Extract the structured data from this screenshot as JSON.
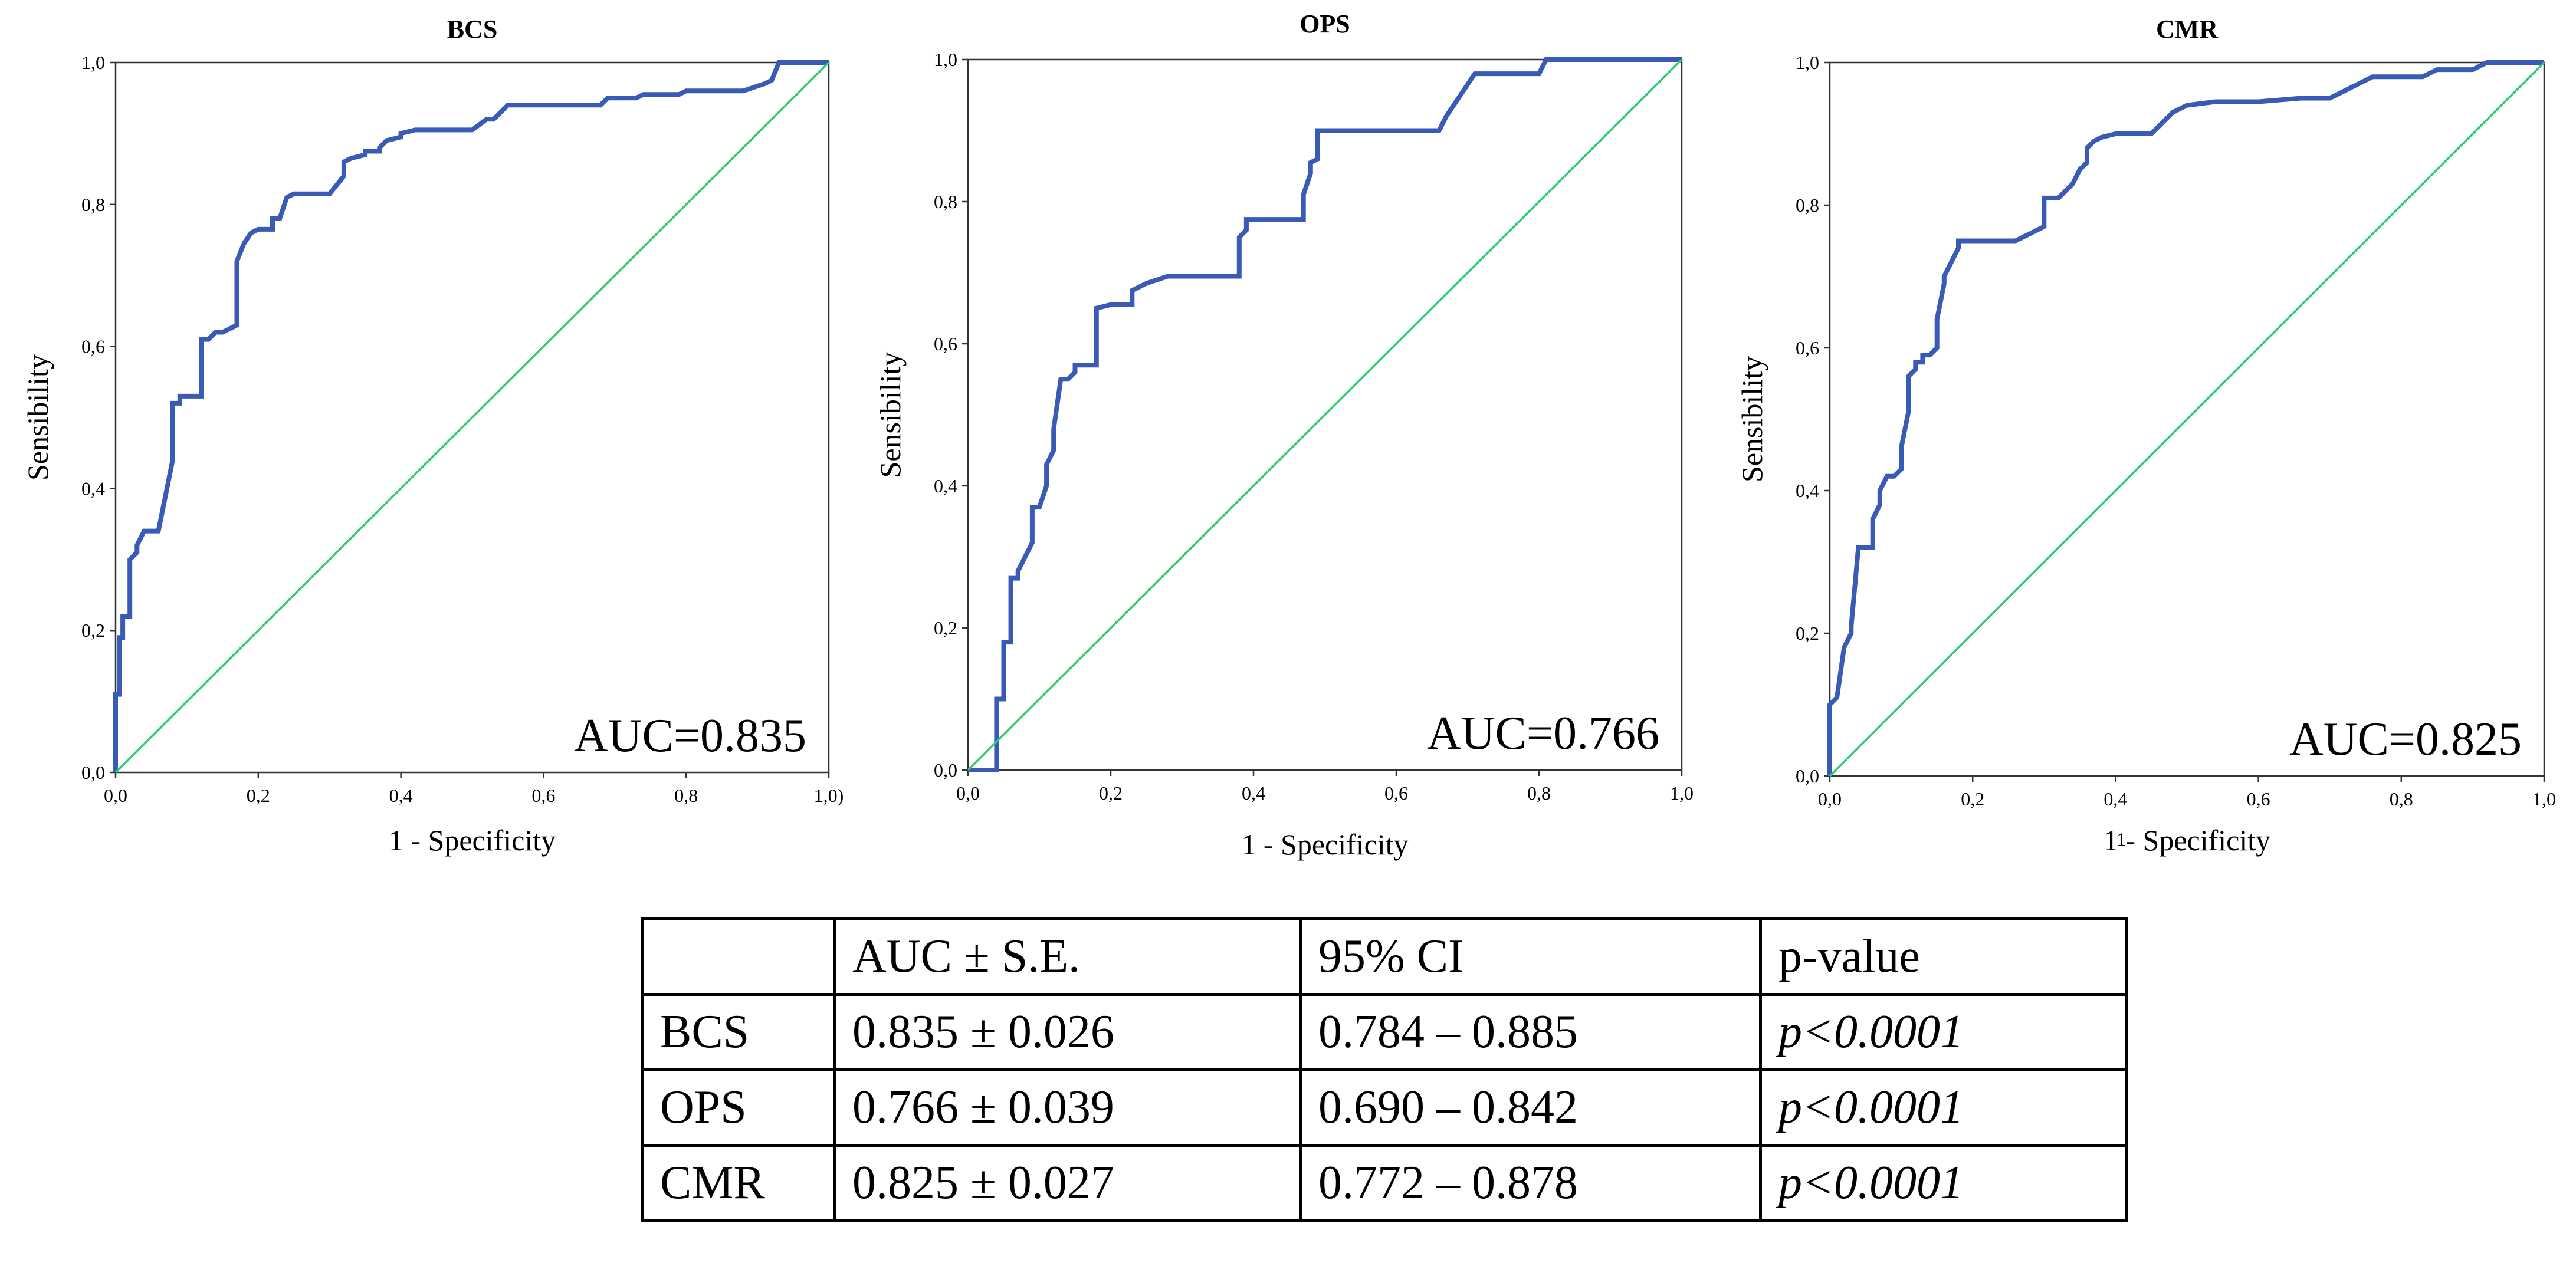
{
  "chart_data": [
    {
      "type": "line",
      "title": "BCS",
      "xlabel": "1 - Specificity",
      "ylabel": "Sensibility",
      "xlim": [
        0,
        1
      ],
      "ylim": [
        0,
        1
      ],
      "x_tick_labels": [
        "0,0",
        "0,2",
        "0,4",
        "0,6",
        "0,8",
        "1,0)"
      ],
      "y_tick_labels": [
        "0,0",
        "0,2",
        "0,4",
        "0,6",
        "0,8",
        "1,0"
      ],
      "annotation": "AUC=0.835",
      "series": [
        {
          "name": "ROC",
          "color": "#3a5bb5",
          "x": [
            0,
            0,
            0.005,
            0.005,
            0.01,
            0.01,
            0.02,
            0.02,
            0.03,
            0.03,
            0.04,
            0.05,
            0.06,
            0.08,
            0.08,
            0.09,
            0.09,
            0.1,
            0.11,
            0.12,
            0.12,
            0.13,
            0.14,
            0.15,
            0.16,
            0.17,
            0.17,
            0.18,
            0.19,
            0.2,
            0.22,
            0.22,
            0.23,
            0.24,
            0.25,
            0.26,
            0.28,
            0.3,
            0.32,
            0.32,
            0.33,
            0.35,
            0.35,
            0.37,
            0.37,
            0.38,
            0.4,
            0.4,
            0.42,
            0.46,
            0.5,
            0.52,
            0.53,
            0.55,
            0.68,
            0.69,
            0.73,
            0.74,
            0.79,
            0.8,
            0.86,
            0.88,
            0.91,
            0.92,
            0.93,
            1.0
          ],
          "y": [
            0,
            0.11,
            0.11,
            0.19,
            0.19,
            0.22,
            0.22,
            0.3,
            0.31,
            0.32,
            0.34,
            0.34,
            0.34,
            0.44,
            0.52,
            0.52,
            0.53,
            0.53,
            0.53,
            0.53,
            0.61,
            0.61,
            0.62,
            0.62,
            0.625,
            0.63,
            0.72,
            0.745,
            0.76,
            0.765,
            0.765,
            0.78,
            0.78,
            0.81,
            0.815,
            0.815,
            0.815,
            0.815,
            0.84,
            0.86,
            0.865,
            0.87,
            0.875,
            0.875,
            0.88,
            0.89,
            0.895,
            0.9,
            0.905,
            0.905,
            0.905,
            0.92,
            0.92,
            0.94,
            0.94,
            0.95,
            0.95,
            0.955,
            0.955,
            0.96,
            0.96,
            0.96,
            0.97,
            0.975,
            1.0,
            1.0
          ]
        },
        {
          "name": "Reference",
          "color": "#2ecc71",
          "x": [
            0,
            1
          ],
          "y": [
            0,
            1
          ]
        }
      ]
    },
    {
      "type": "line",
      "title": "OPS",
      "xlabel": "1 - Specificity",
      "ylabel": "Sensibility",
      "xlim": [
        0,
        1
      ],
      "ylim": [
        0,
        1
      ],
      "x_tick_labels": [
        "0,0",
        "0,2",
        "0,4",
        "0,6",
        "0,8",
        "1,0"
      ],
      "y_tick_labels": [
        "0,0",
        "0,2",
        "0,4",
        "0,6",
        "0,8",
        "1,0"
      ],
      "annotation": "AUC=0.766",
      "series": [
        {
          "name": "ROC",
          "color": "#3a5bb5",
          "x": [
            0,
            0.04,
            0.04,
            0.05,
            0.05,
            0.06,
            0.06,
            0.07,
            0.07,
            0.08,
            0.09,
            0.09,
            0.1,
            0.11,
            0.11,
            0.12,
            0.12,
            0.13,
            0.13,
            0.14,
            0.15,
            0.15,
            0.16,
            0.18,
            0.18,
            0.2,
            0.23,
            0.23,
            0.25,
            0.28,
            0.3,
            0.38,
            0.38,
            0.39,
            0.39,
            0.43,
            0.47,
            0.47,
            0.48,
            0.48,
            0.49,
            0.49,
            0.53,
            0.6,
            0.66,
            0.67,
            0.69,
            0.71,
            0.74,
            0.8,
            0.81,
            1.0
          ],
          "y": [
            0,
            0,
            0.1,
            0.1,
            0.18,
            0.18,
            0.27,
            0.27,
            0.28,
            0.3,
            0.32,
            0.37,
            0.37,
            0.4,
            0.43,
            0.45,
            0.48,
            0.55,
            0.55,
            0.55,
            0.56,
            0.57,
            0.57,
            0.57,
            0.65,
            0.655,
            0.655,
            0.675,
            0.685,
            0.695,
            0.695,
            0.695,
            0.75,
            0.76,
            0.775,
            0.775,
            0.775,
            0.81,
            0.84,
            0.855,
            0.86,
            0.9,
            0.9,
            0.9,
            0.9,
            0.92,
            0.95,
            0.98,
            0.98,
            0.98,
            1.0,
            1.0
          ]
        },
        {
          "name": "Reference",
          "color": "#2ecc71",
          "x": [
            0,
            1
          ],
          "y": [
            0,
            1
          ]
        }
      ]
    },
    {
      "type": "line",
      "title": "CMR",
      "xlabel": "1 - Specificity",
      "ylabel": "Sensibility",
      "xlim": [
        0,
        1
      ],
      "ylim": [
        0,
        1
      ],
      "x_tick_labels": [
        "0,0",
        "0,2",
        "0,4",
        "0,6",
        "0,8",
        "1,0"
      ],
      "y_tick_labels": [
        "0,0",
        "0,2",
        "0,4",
        "0,6",
        "0,8",
        "1,0"
      ],
      "annotation": "AUC=0.825",
      "extra_label": "1",
      "series": [
        {
          "name": "ROC",
          "color": "#3a5bb5",
          "x": [
            0,
            0,
            0.01,
            0.01,
            0.02,
            0.02,
            0.03,
            0.03,
            0.04,
            0.04,
            0.06,
            0.06,
            0.07,
            0.07,
            0.08,
            0.09,
            0.1,
            0.1,
            0.11,
            0.11,
            0.12,
            0.12,
            0.13,
            0.13,
            0.14,
            0.15,
            0.15,
            0.16,
            0.16,
            0.17,
            0.18,
            0.18,
            0.19,
            0.2,
            0.22,
            0.26,
            0.28,
            0.3,
            0.3,
            0.32,
            0.33,
            0.34,
            0.35,
            0.36,
            0.36,
            0.37,
            0.38,
            0.4,
            0.42,
            0.45,
            0.46,
            0.47,
            0.48,
            0.5,
            0.54,
            0.6,
            0.66,
            0.7,
            0.74,
            0.76,
            0.83,
            0.85,
            0.9,
            0.92,
            1.0
          ],
          "y": [
            0,
            0.1,
            0.11,
            0.11,
            0.18,
            0.18,
            0.2,
            0.21,
            0.32,
            0.32,
            0.32,
            0.36,
            0.38,
            0.4,
            0.42,
            0.42,
            0.43,
            0.46,
            0.51,
            0.56,
            0.57,
            0.58,
            0.58,
            0.59,
            0.59,
            0.6,
            0.64,
            0.69,
            0.7,
            0.72,
            0.74,
            0.75,
            0.75,
            0.75,
            0.75,
            0.75,
            0.76,
            0.77,
            0.81,
            0.81,
            0.82,
            0.83,
            0.85,
            0.86,
            0.88,
            0.89,
            0.895,
            0.9,
            0.9,
            0.9,
            0.91,
            0.92,
            0.93,
            0.94,
            0.945,
            0.945,
            0.95,
            0.95,
            0.97,
            0.98,
            0.98,
            0.99,
            0.99,
            1.0,
            1.0
          ]
        },
        {
          "name": "Reference",
          "color": "#2ecc71",
          "x": [
            0,
            1
          ],
          "y": [
            0,
            1
          ]
        }
      ]
    }
  ],
  "table": {
    "headers": [
      "",
      "AUC ± S.E.",
      "95% CI",
      "p-value"
    ],
    "rows": [
      [
        "BCS",
        "0.835 ± 0.026",
        "0.784 – 0.885",
        "p<0.0001"
      ],
      [
        "OPS",
        "0.766 ± 0.039",
        "0.690 – 0.842",
        "p<0.0001"
      ],
      [
        "CMR",
        "0.825 ± 0.027",
        "0.772 – 0.878",
        "p<0.0001"
      ]
    ]
  }
}
